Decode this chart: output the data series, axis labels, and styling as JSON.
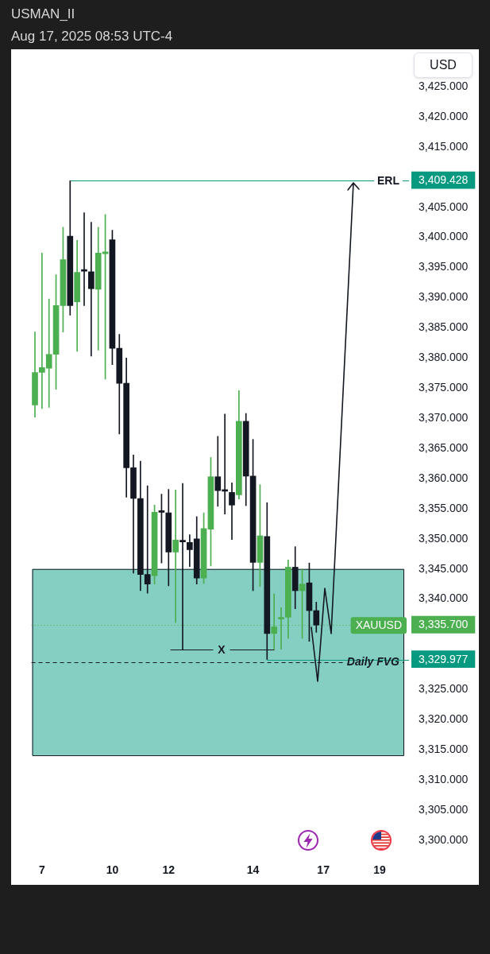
{
  "chart_data": {
    "type": "candlestick",
    "title": "USMAN_II",
    "subtitle": "Aug 17, 2025 08:53 UTC-4",
    "ylabel": "USD",
    "categories": [
      null,
      "7",
      null,
      null,
      null,
      null,
      null,
      null,
      null,
      null,
      null,
      "10",
      null,
      null,
      null,
      null,
      null,
      null,
      null,
      "12",
      null,
      null,
      null,
      null,
      null,
      null,
      null,
      null,
      null,
      null,
      null,
      "14",
      null,
      null,
      null,
      null,
      null,
      null,
      null,
      null,
      null,
      "17",
      null,
      null,
      null,
      null,
      null,
      null,
      null,
      "19",
      null,
      null,
      null
    ],
    "ohlc": [
      [
        3372.2,
        3384.3,
        3370.2,
        3377.6
      ],
      [
        3377.6,
        3397.4,
        3371.6,
        3378.4
      ],
      [
        3378.3,
        3389.8,
        3371.8,
        3380.6
      ],
      [
        3380.6,
        3393.8,
        3374.8,
        3388.7
      ],
      [
        3388.7,
        3401.7,
        3384.3,
        3396.3
      ],
      [
        3400.2,
        3409.4,
        3387.1,
        3388.7
      ],
      [
        3389.3,
        3399.5,
        3381.1,
        3394.2
      ],
      [
        3394.6,
        3404.1,
        3388.7,
        3394.4
      ],
      [
        3394.3,
        3402.5,
        3380.3,
        3391.5
      ],
      [
        3391.4,
        3401.7,
        3381.3,
        3397.4
      ],
      [
        3397.3,
        3403.8,
        3376.5,
        3397.6
      ],
      [
        3399.6,
        3401.2,
        3378.9,
        3381.6
      ],
      [
        3381.6,
        3383.9,
        3367.4,
        3375.8
      ],
      [
        3375.8,
        3380.0,
        3356.9,
        3361.8
      ],
      [
        3361.8,
        3363.9,
        3344.3,
        3356.7
      ],
      [
        3356.7,
        3362.9,
        3341.4,
        3344.1
      ],
      [
        3344.1,
        3358.8,
        3341.0,
        3342.5
      ],
      [
        3343.9,
        3355.6,
        3342.5,
        3354.4
      ],
      [
        3354.6,
        3357.4,
        3346.0,
        3354.4
      ],
      [
        3354.3,
        3358.2,
        3342.2,
        3347.8
      ],
      [
        3347.8,
        3358.1,
        3336.1,
        3349.8
      ],
      [
        3349.7,
        3359.2,
        3331.7,
        3349.5
      ],
      [
        3349.4,
        3350.7,
        3345.4,
        3348.2
      ],
      [
        3350.0,
        3353.7,
        3342.5,
        3343.5
      ],
      [
        3343.5,
        3354.3,
        3342.6,
        3351.7
      ],
      [
        3351.6,
        3363.5,
        3345.5,
        3360.3
      ],
      [
        3360.3,
        3367.0,
        3355.4,
        3358.0
      ],
      [
        3358.0,
        3370.7,
        3354.1,
        3357.9
      ],
      [
        3357.7,
        3359.3,
        3349.9,
        3355.6
      ],
      [
        3357.3,
        3374.6,
        3356.6,
        3369.5
      ],
      [
        3369.5,
        3370.8,
        3355.5,
        3360.4
      ],
      [
        3360.4,
        3366.5,
        3341.4,
        3346.1
      ],
      [
        3346.1,
        3359.0,
        3342.1,
        3350.5
      ],
      [
        3350.4,
        3356.0,
        3330.0,
        3334.3
      ],
      [
        3334.3,
        3340.9,
        3331.6,
        3335.4
      ],
      [
        3336.7,
        3338.6,
        3331.7,
        3336.9
      ],
      [
        3337.0,
        3346.5,
        3333.5,
        3345.3
      ],
      [
        3345.3,
        3348.7,
        3338.4,
        3341.4
      ],
      [
        3341.4,
        3345.0,
        3333.5,
        3342.5
      ],
      [
        3342.7,
        3346.0,
        3333.0,
        3338.1
      ],
      [
        3338.1,
        3339.5,
        3334.5,
        3335.7
      ],
      null,
      null,
      null,
      null,
      null,
      null,
      null,
      null,
      null,
      null,
      null,
      null
    ],
    "colors": [
      "#4caf50",
      "#4caf50",
      "#4caf50",
      "#4caf50",
      "#4caf50",
      "#131722",
      "#4caf50",
      "#131722",
      "#131722",
      "#4caf50",
      "#4caf50",
      "#131722",
      "#131722",
      "#131722",
      "#131722",
      "#131722",
      "#131722",
      "#4caf50",
      "#131722",
      "#131722",
      "#4caf50",
      "#131722",
      "#131722",
      "#131722",
      "#4caf50",
      "#4caf50",
      "#131722",
      "#131722",
      "#131722",
      "#4caf50",
      "#131722",
      "#131722",
      "#4caf50",
      "#131722",
      "#4caf50",
      "#4caf50",
      "#4caf50",
      "#131722",
      "#4caf50",
      "#131722",
      "#131722",
      null,
      null,
      null,
      null,
      null,
      null,
      null,
      null,
      null,
      null,
      null,
      null
    ],
    "ylim": [
      3300,
      3425
    ],
    "yticks": [
      {
        "value": 3300,
        "label": "3,300.000"
      },
      {
        "value": 3305,
        "label": "3,305.000"
      },
      {
        "value": 3310,
        "label": "3,310.000"
      },
      {
        "value": 3315,
        "label": "3,315.000"
      },
      {
        "value": 3320,
        "label": "3,320.000"
      },
      {
        "value": 3325,
        "label": "3,325.000"
      },
      {
        "value": 3329.977,
        "label": "3,329.977"
      },
      {
        "value": 3335.7,
        "label": "3,335.700"
      },
      {
        "value": 3340,
        "label": "3,340.000"
      },
      {
        "value": 3345,
        "label": "3,345.000"
      },
      {
        "value": 3350,
        "label": "3,350.000"
      },
      {
        "value": 3355,
        "label": "3,355.000"
      },
      {
        "value": 3360,
        "label": "3,360.000"
      },
      {
        "value": 3365,
        "label": "3,365.000"
      },
      {
        "value": 3370,
        "label": "3,370.000"
      },
      {
        "value": 3375,
        "label": "3,375.000"
      },
      {
        "value": 3380,
        "label": "3,380.000"
      },
      {
        "value": 3385,
        "label": "3,385.000"
      },
      {
        "value": 3390,
        "label": "3,390.000"
      },
      {
        "value": 3395,
        "label": "3,395.000"
      },
      {
        "value": 3400,
        "label": "3,400.000"
      },
      {
        "value": 3405,
        "label": "3,405.000"
      },
      {
        "value": 3409.428,
        "label": "3,409.428"
      },
      {
        "value": 3415,
        "label": "3,415.000"
      },
      {
        "value": 3420,
        "label": "3,420.000"
      },
      {
        "value": 3425,
        "label": "3,425.000"
      }
    ],
    "ref_lines": [
      {
        "axis": "y",
        "value": 3409.428,
        "label": "ERL",
        "color": "#089981"
      },
      {
        "axis": "y",
        "value": 3335.7,
        "label": "XAUUSD",
        "color": "#4caf50",
        "line_style": "dotted"
      },
      {
        "axis": "y",
        "value": 3329.977,
        "color": "#089981"
      },
      {
        "axis": "y",
        "value": 3329.6,
        "label": "Daily FVG",
        "color": "#131722",
        "line_style": "dashed"
      }
    ],
    "bands": [
      {
        "axis": "y",
        "from": 3314.1,
        "to": 3345.0,
        "color": "#84cfc1"
      }
    ],
    "annotations": [
      "X"
    ]
  }
}
